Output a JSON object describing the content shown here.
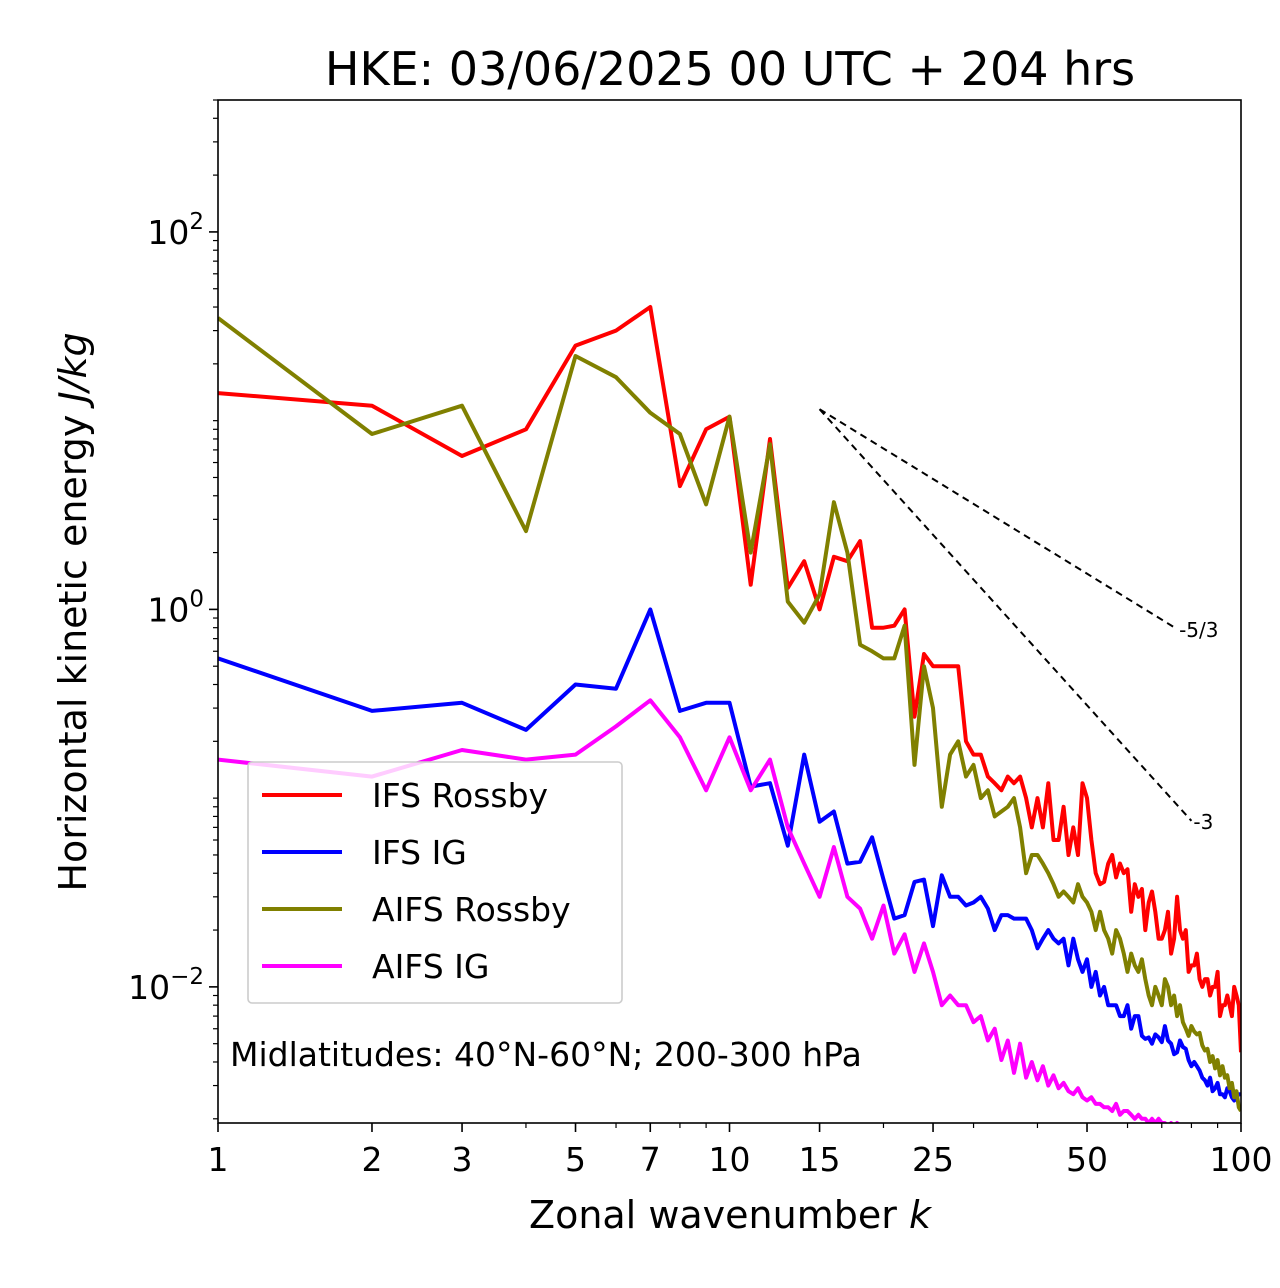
{
  "chart_data": {
    "type": "line",
    "title": "HKE: 03/06/2025 00 UTC + 204 hrs",
    "xlabel_main": "Zonal wavenumber ",
    "xlabel_var": "k",
    "ylabel_main": "Horizontal kinetic energy ",
    "ylabel_unit": "J/kg",
    "x_scale": "log",
    "y_scale": "log",
    "xlim": [
      1,
      100
    ],
    "ylim": [
      0.0019,
      500
    ],
    "grid": false,
    "legend_placement": "lower-left",
    "x_ticks": [
      {
        "value": 1,
        "label": "1"
      },
      {
        "value": 2,
        "label": "2"
      },
      {
        "value": 3,
        "label": "3"
      },
      {
        "value": 5,
        "label": "5"
      },
      {
        "value": 7,
        "label": "7"
      },
      {
        "value": 10,
        "label": "10"
      },
      {
        "value": 15,
        "label": "15"
      },
      {
        "value": 25,
        "label": "25"
      },
      {
        "value": 50,
        "label": "50"
      },
      {
        "value": 100,
        "label": "100"
      }
    ],
    "y_ticks": [
      {
        "value": 100,
        "base": "10",
        "exp": "2"
      },
      {
        "value": 1,
        "base": "10",
        "exp": "0"
      },
      {
        "value": 0.01,
        "base": "10",
        "exp": "−2"
      }
    ],
    "annotation": "Midlatitudes: 40°N-60°N; 200-300 hPa",
    "reference_lines": [
      {
        "label": "-5/3",
        "slope": -1.6667,
        "x_start": 15,
        "y_start": 11.5,
        "x_end": 75
      },
      {
        "label": "-3",
        "slope": -3,
        "x_start": 15,
        "y_start": 11.5,
        "x_end": 80
      }
    ],
    "series": [
      {
        "name": "IFS Rossby",
        "color": "#ff0000",
        "x": [
          1,
          2,
          3,
          4,
          5,
          6,
          7,
          8,
          9,
          10,
          11,
          12,
          13,
          14,
          15,
          16,
          17,
          18,
          19,
          20,
          21,
          22,
          23,
          24,
          25,
          26,
          27,
          28,
          29,
          30,
          31,
          32,
          33,
          34,
          35,
          36,
          37,
          38,
          39,
          40,
          41,
          42,
          43,
          44,
          45,
          46,
          47,
          48,
          49,
          50,
          51,
          52,
          53,
          54,
          55,
          56,
          57,
          58,
          59,
          60,
          61,
          62,
          63,
          64,
          65,
          66,
          67,
          68,
          69,
          70,
          71,
          72,
          73,
          74,
          75,
          76,
          77,
          78,
          79,
          80,
          81,
          82,
          83,
          84,
          85,
          86,
          87,
          88,
          89,
          90,
          91,
          92,
          93,
          94,
          95,
          96,
          97,
          98,
          99,
          100
        ],
        "y": [
          14,
          12,
          6.5,
          9,
          25,
          30,
          40,
          4.5,
          9,
          10.5,
          1.35,
          8,
          1.3,
          1.8,
          1.0,
          1.9,
          1.8,
          2.3,
          0.8,
          0.8,
          0.82,
          1.0,
          0.27,
          0.58,
          0.5,
          0.5,
          0.5,
          0.5,
          0.2,
          0.17,
          0.17,
          0.13,
          0.12,
          0.11,
          0.13,
          0.12,
          0.13,
          0.1,
          0.07,
          0.1,
          0.07,
          0.12,
          0.06,
          0.06,
          0.09,
          0.05,
          0.07,
          0.05,
          0.12,
          0.1,
          0.06,
          0.04,
          0.035,
          0.036,
          0.045,
          0.05,
          0.038,
          0.045,
          0.04,
          0.042,
          0.025,
          0.035,
          0.03,
          0.033,
          0.02,
          0.028,
          0.032,
          0.025,
          0.018,
          0.018,
          0.02,
          0.025,
          0.015,
          0.018,
          0.03,
          0.02,
          0.018,
          0.02,
          0.012,
          0.013,
          0.013,
          0.015,
          0.011,
          0.01,
          0.011,
          0.011,
          0.009,
          0.01,
          0.01,
          0.012,
          0.007,
          0.008,
          0.008,
          0.009,
          0.008,
          0.007,
          0.01,
          0.009,
          0.008,
          0.0045
        ]
      },
      {
        "name": "IFS IG",
        "color": "#0000ff",
        "x": [
          1,
          2,
          3,
          4,
          5,
          6,
          7,
          8,
          9,
          10,
          11,
          12,
          13,
          14,
          15,
          16,
          17,
          18,
          19,
          20,
          21,
          22,
          23,
          24,
          25,
          26,
          27,
          28,
          29,
          30,
          31,
          32,
          33,
          34,
          35,
          36,
          37,
          38,
          39,
          40,
          41,
          42,
          43,
          44,
          45,
          46,
          47,
          48,
          49,
          50,
          51,
          52,
          53,
          54,
          55,
          56,
          57,
          58,
          59,
          60,
          61,
          62,
          63,
          64,
          65,
          66,
          67,
          68,
          69,
          70,
          71,
          72,
          73,
          74,
          75,
          76,
          77,
          78,
          79,
          80,
          81,
          82,
          83,
          84,
          85,
          86,
          87,
          88,
          89,
          90,
          91,
          92,
          93,
          94,
          95,
          96,
          97,
          98,
          99,
          100
        ],
        "y": [
          0.55,
          0.29,
          0.32,
          0.23,
          0.4,
          0.38,
          1.0,
          0.29,
          0.32,
          0.32,
          0.115,
          0.12,
          0.056,
          0.17,
          0.075,
          0.085,
          0.045,
          0.046,
          0.062,
          0.037,
          0.023,
          0.024,
          0.036,
          0.037,
          0.021,
          0.039,
          0.03,
          0.03,
          0.027,
          0.028,
          0.03,
          0.026,
          0.02,
          0.024,
          0.024,
          0.023,
          0.023,
          0.023,
          0.02,
          0.016,
          0.018,
          0.02,
          0.018,
          0.017,
          0.018,
          0.013,
          0.018,
          0.014,
          0.012,
          0.014,
          0.01,
          0.012,
          0.009,
          0.01,
          0.008,
          0.008,
          0.008,
          0.007,
          0.007,
          0.008,
          0.006,
          0.007,
          0.007,
          0.0055,
          0.0053,
          0.0054,
          0.005,
          0.0056,
          0.0054,
          0.0051,
          0.0062,
          0.0052,
          0.005,
          0.0044,
          0.0045,
          0.0052,
          0.0048,
          0.0047,
          0.0041,
          0.0038,
          0.004,
          0.0038,
          0.0036,
          0.0033,
          0.0032,
          0.003,
          0.0033,
          0.0028,
          0.0029,
          0.0031,
          0.0027,
          0.0027,
          0.0026,
          0.0029,
          0.0028,
          0.0026,
          0.0025,
          0.0026,
          0.0027,
          0.0027
        ]
      },
      {
        "name": "AIFS Rossby",
        "color": "#808000",
        "x": [
          1,
          2,
          3,
          4,
          5,
          6,
          7,
          8,
          9,
          10,
          11,
          12,
          13,
          14,
          15,
          16,
          17,
          18,
          19,
          20,
          21,
          22,
          23,
          24,
          25,
          26,
          27,
          28,
          29,
          30,
          31,
          32,
          33,
          34,
          35,
          36,
          37,
          38,
          39,
          40,
          41,
          42,
          43,
          44,
          45,
          46,
          47,
          48,
          49,
          50,
          51,
          52,
          53,
          54,
          55,
          56,
          57,
          58,
          59,
          60,
          61,
          62,
          63,
          64,
          65,
          66,
          67,
          68,
          69,
          70,
          71,
          72,
          73,
          74,
          75,
          76,
          77,
          78,
          79,
          80,
          81,
          82,
          83,
          84,
          85,
          86,
          87,
          88,
          89,
          90,
          91,
          92,
          93,
          94,
          95,
          96,
          97,
          98,
          99,
          100
        ],
        "y": [
          35,
          8.5,
          12,
          2.6,
          22,
          17,
          11,
          8.5,
          3.6,
          10.5,
          2.0,
          7.5,
          1.1,
          0.85,
          1.2,
          3.7,
          2.0,
          0.65,
          0.6,
          0.55,
          0.55,
          0.82,
          0.15,
          0.5,
          0.3,
          0.09,
          0.17,
          0.2,
          0.13,
          0.15,
          0.1,
          0.11,
          0.08,
          0.085,
          0.09,
          0.1,
          0.07,
          0.04,
          0.05,
          0.05,
          0.045,
          0.04,
          0.035,
          0.03,
          0.032,
          0.03,
          0.028,
          0.035,
          0.03,
          0.028,
          0.025,
          0.02,
          0.025,
          0.02,
          0.018,
          0.015,
          0.02,
          0.018,
          0.015,
          0.012,
          0.015,
          0.013,
          0.012,
          0.014,
          0.011,
          0.009,
          0.008,
          0.01,
          0.009,
          0.008,
          0.011,
          0.01,
          0.008,
          0.009,
          0.007,
          0.008,
          0.0065,
          0.006,
          0.0055,
          0.0062,
          0.0058,
          0.0056,
          0.0057,
          0.0049,
          0.0046,
          0.0047,
          0.004,
          0.0043,
          0.0037,
          0.0041,
          0.0034,
          0.0038,
          0.0033,
          0.0034,
          0.0029,
          0.0031,
          0.0026,
          0.0028,
          0.0023,
          0.0022
        ]
      },
      {
        "name": "AIFS IG",
        "color": "#ff00ff",
        "x": [
          1,
          2,
          3,
          4,
          5,
          6,
          7,
          8,
          9,
          10,
          11,
          12,
          13,
          14,
          15,
          16,
          17,
          18,
          19,
          20,
          21,
          22,
          23,
          24,
          25,
          26,
          27,
          28,
          29,
          30,
          31,
          32,
          33,
          34,
          35,
          36,
          37,
          38,
          39,
          40,
          41,
          42,
          43,
          44,
          45,
          46,
          47,
          48,
          49,
          50,
          51,
          52,
          53,
          54,
          55,
          56,
          57,
          58,
          59,
          60,
          61,
          62,
          63,
          64,
          65,
          66,
          67,
          68,
          69,
          70,
          71,
          72,
          73,
          74,
          75,
          76,
          77,
          78,
          79,
          80
        ],
        "y": [
          0.16,
          0.13,
          0.18,
          0.16,
          0.17,
          0.24,
          0.33,
          0.21,
          0.11,
          0.21,
          0.11,
          0.16,
          0.07,
          0.045,
          0.03,
          0.055,
          0.03,
          0.026,
          0.018,
          0.027,
          0.015,
          0.019,
          0.012,
          0.017,
          0.012,
          0.008,
          0.009,
          0.008,
          0.008,
          0.0065,
          0.007,
          0.0052,
          0.006,
          0.0041,
          0.0052,
          0.0035,
          0.005,
          0.0033,
          0.004,
          0.0032,
          0.0038,
          0.003,
          0.0034,
          0.0029,
          0.0031,
          0.0028,
          0.0027,
          0.0029,
          0.0026,
          0.0025,
          0.0026,
          0.0024,
          0.0024,
          0.0023,
          0.0023,
          0.0022,
          0.0024,
          0.0021,
          0.0022,
          0.0022,
          0.0021,
          0.002,
          0.0021,
          0.002,
          0.002,
          0.0019,
          0.002,
          0.0019,
          0.002,
          0.0019,
          0.0019,
          0.0018,
          0.0019,
          0.0018,
          0.0019,
          0.0018,
          0.0018,
          0.0018,
          0.0018,
          0.0018
        ]
      }
    ]
  }
}
